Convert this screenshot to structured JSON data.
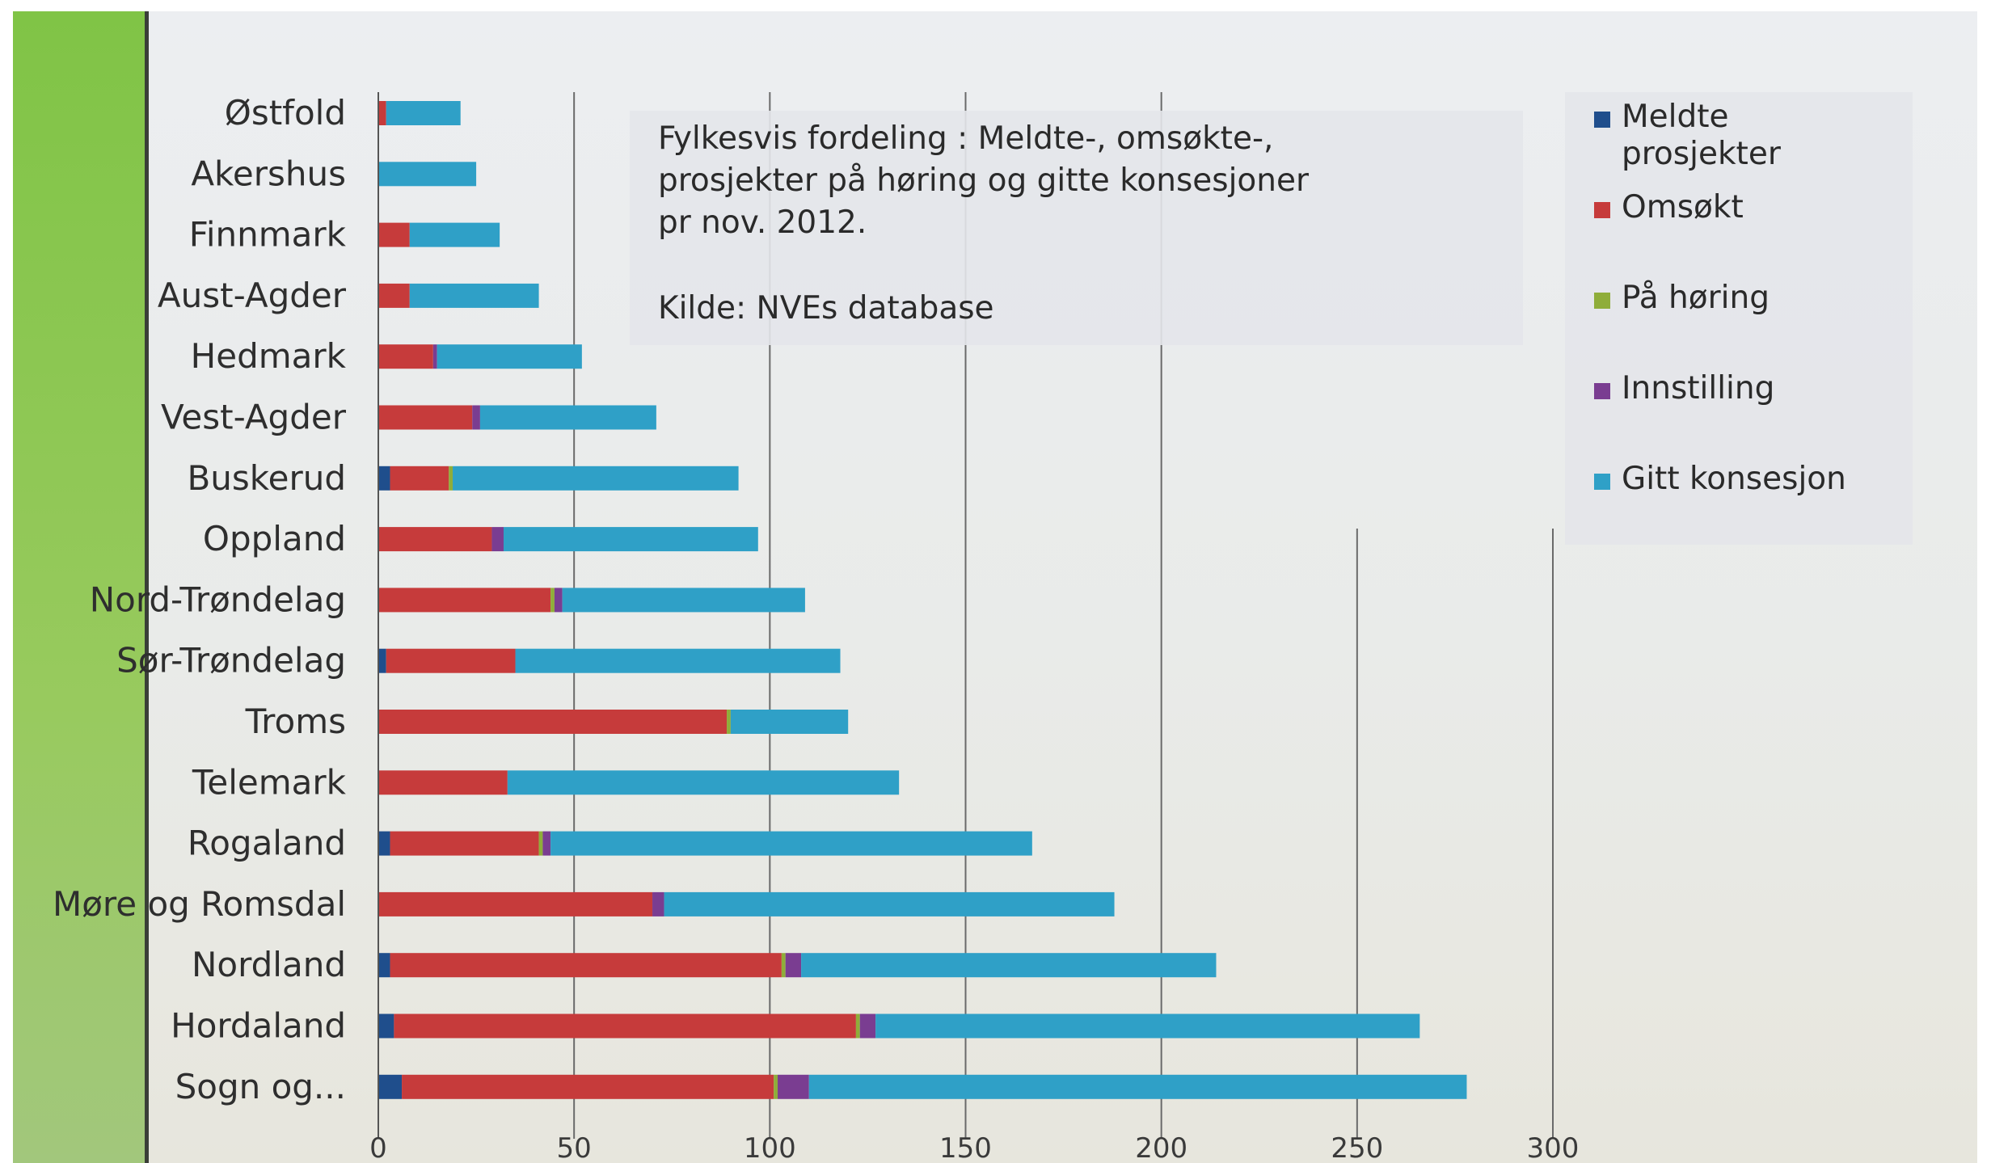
{
  "chart_data": {
    "type": "bar",
    "orientation": "horizontal",
    "stacked": true,
    "title_lines": [
      "Fylkesvis fordeling : Meldte-, omsøkte-,",
      "prosjekter på høring og gitte konsesjoner",
      "pr nov. 2012."
    ],
    "source": "Kilde: NVEs database",
    "categories": [
      "Østfold",
      "Akershus",
      "Finnmark",
      "Aust-Agder",
      "Hedmark",
      "Vest-Agder",
      "Buskerud",
      "Oppland",
      "Nord-Trøndelag",
      "Sør-Trøndelag",
      "Troms",
      "Telemark",
      "Rogaland",
      "Møre og Romsdal",
      "Nordland",
      "Hordaland",
      "Sogn og..."
    ],
    "series": [
      {
        "name": "Meldte prosjekter",
        "color": "#1f4e8c",
        "values": [
          0,
          0,
          0,
          0,
          0,
          0,
          3,
          0,
          0,
          2,
          0,
          0,
          3,
          0,
          3,
          4,
          6
        ]
      },
      {
        "name": "Omsøkt",
        "color": "#c63b3b",
        "values": [
          2,
          0,
          8,
          8,
          14,
          24,
          15,
          29,
          44,
          33,
          89,
          33,
          38,
          70,
          100,
          118,
          95
        ]
      },
      {
        "name": "På høring",
        "color": "#8fad3a",
        "values": [
          0,
          0,
          0,
          0,
          0,
          0,
          1,
          0,
          1,
          0,
          1,
          0,
          1,
          0,
          1,
          1,
          1
        ]
      },
      {
        "name": "Innstilling",
        "color": "#7a3d91",
        "values": [
          0,
          0,
          0,
          0,
          1,
          2,
          0,
          3,
          2,
          0,
          0,
          0,
          2,
          3,
          4,
          4,
          8
        ]
      },
      {
        "name": "Gitt konsesjon",
        "color": "#2fa0c7",
        "values": [
          19,
          25,
          23,
          33,
          37,
          45,
          73,
          65,
          62,
          83,
          30,
          100,
          123,
          115,
          106,
          139,
          168
        ]
      }
    ],
    "x_ticks": [
      "0",
      "50",
      "100",
      "150",
      "200",
      "250",
      "300"
    ],
    "xlim": [
      0,
      300
    ],
    "grid": "vertical",
    "legend_position": "right"
  }
}
